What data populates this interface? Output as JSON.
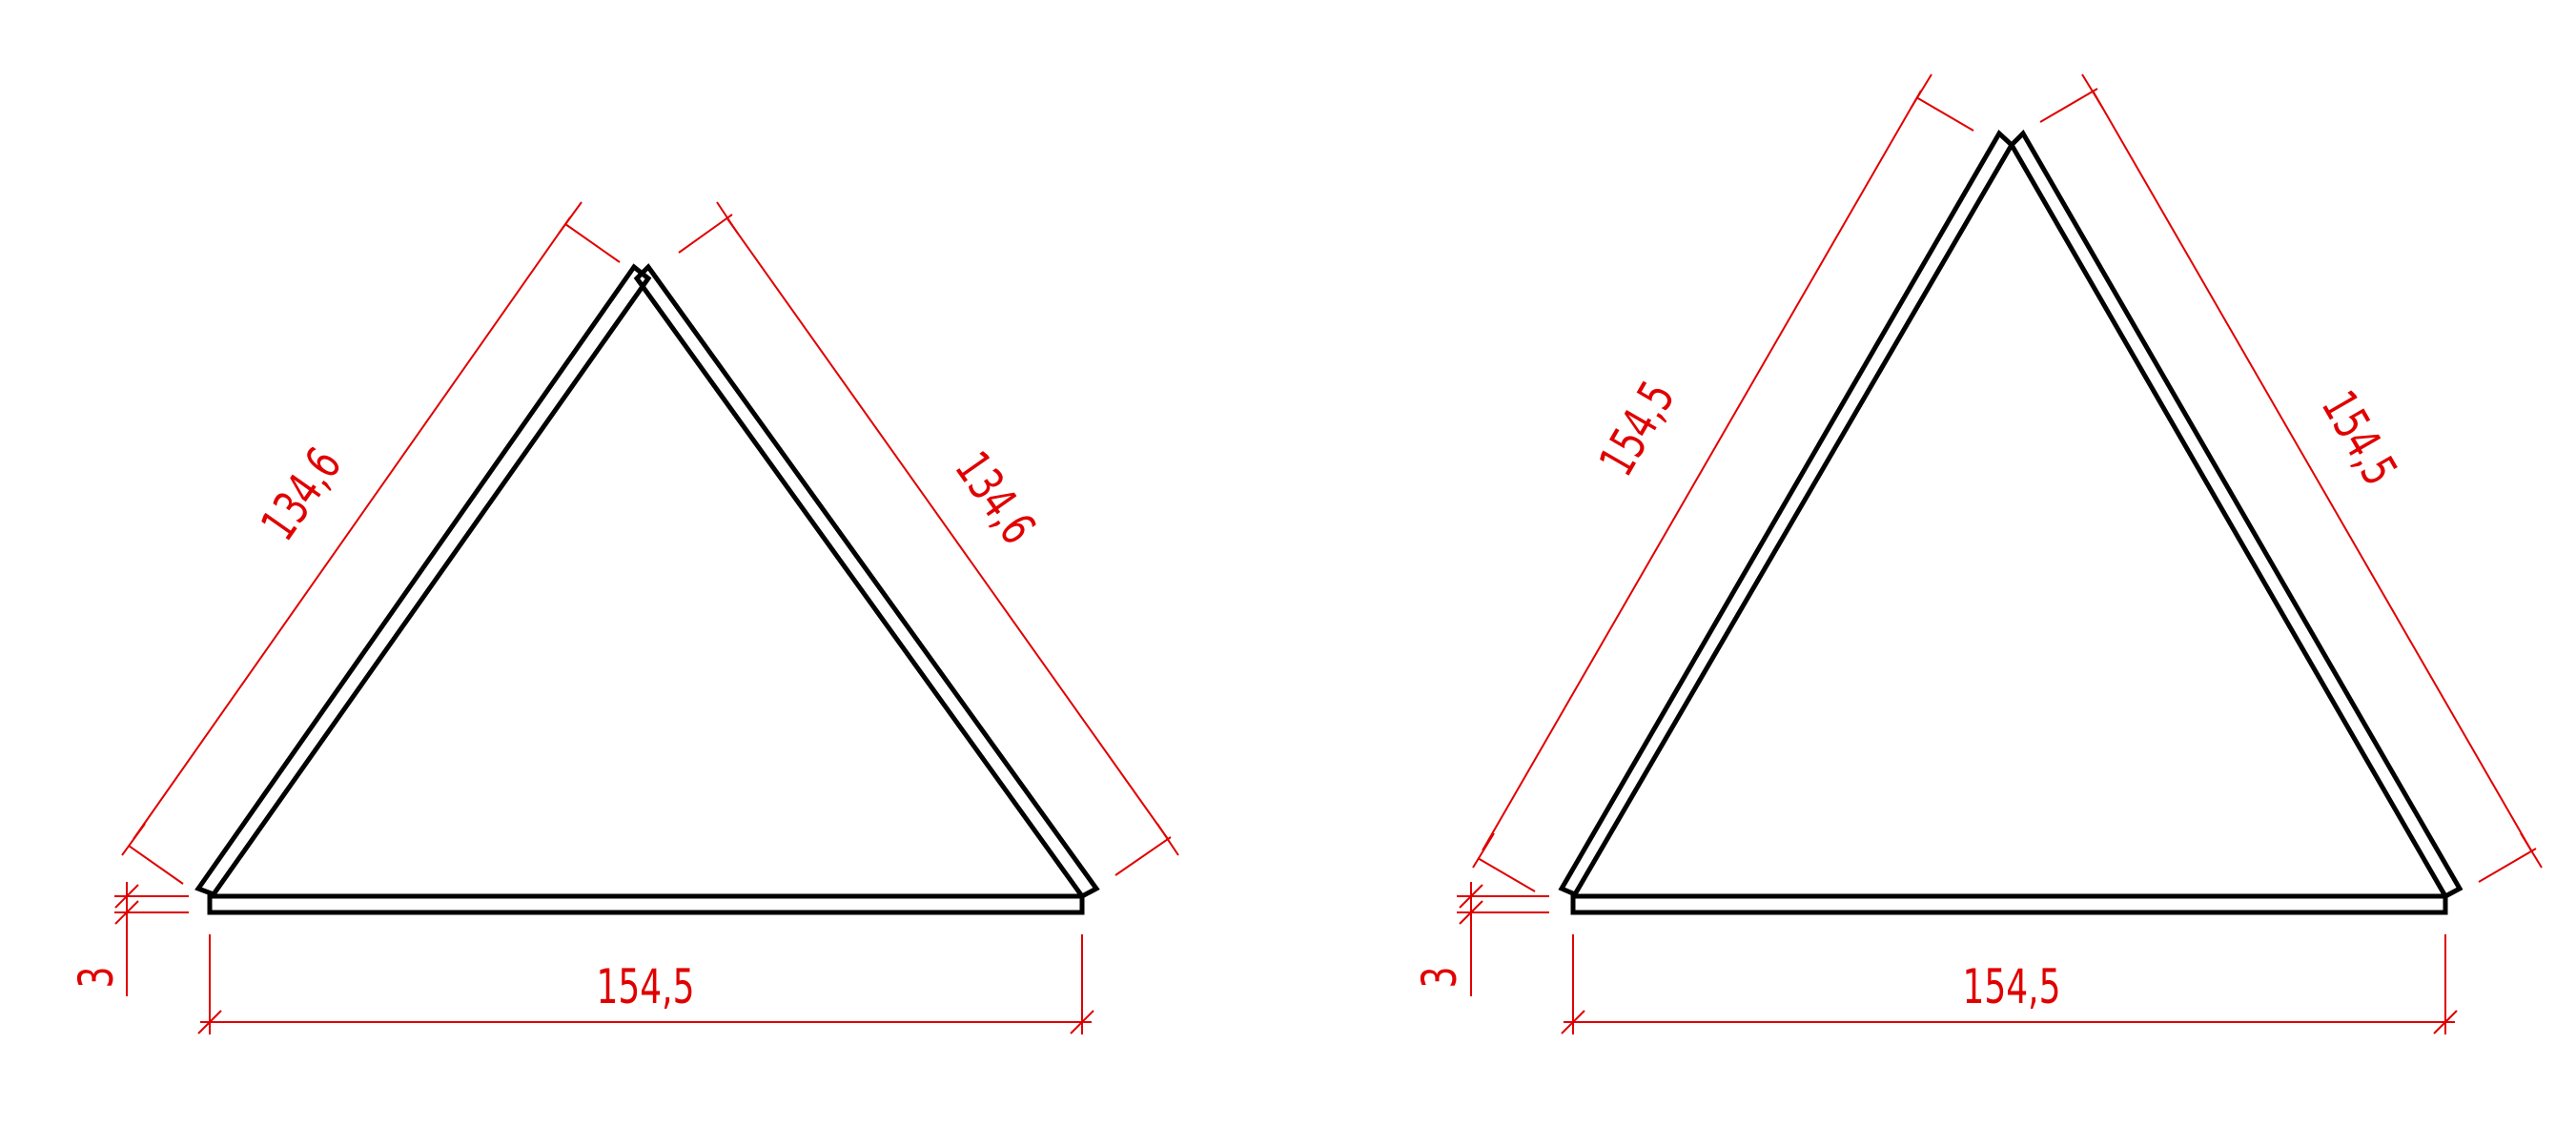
{
  "colors": {
    "geometry": "#000000",
    "dimension": "#e00000",
    "background": "#ffffff"
  },
  "drawings": [
    {
      "side_left": "134,6",
      "side_right": "134,6",
      "base": "154,5",
      "thickness": "3"
    },
    {
      "side_left": "154,5",
      "side_right": "154,5",
      "base": "154,5",
      "thickness": "3"
    }
  ]
}
